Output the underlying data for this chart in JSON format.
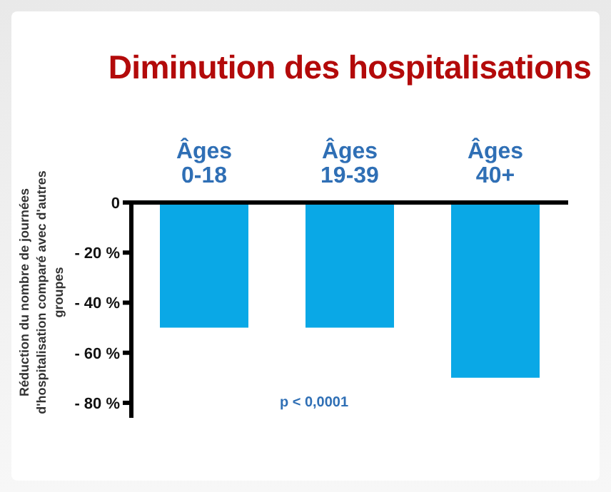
{
  "chart_data": {
    "type": "bar",
    "title": "Diminution des hospitalisations",
    "ylabel": "Réduction du nombre de journées d'hospitalisation comparé avec d'autres groupes",
    "categories": [
      "Âges 0-18",
      "Âges 19-39",
      "Âges 40+"
    ],
    "values": [
      -50,
      -50,
      -70
    ],
    "color": "#0aa8e6",
    "ylim": [
      -86,
      0
    ],
    "yticks": [
      0,
      {
        "value": -20,
        "label": "- 20 %"
      },
      {
        "value": -40,
        "label": "- 40 %"
      },
      {
        "value": -60,
        "label": "- 60 %"
      },
      {
        "value": -80,
        "label": "- 80 %"
      }
    ],
    "grid": false,
    "legend": false,
    "annotations": [
      "p < 0,0001"
    ]
  }
}
